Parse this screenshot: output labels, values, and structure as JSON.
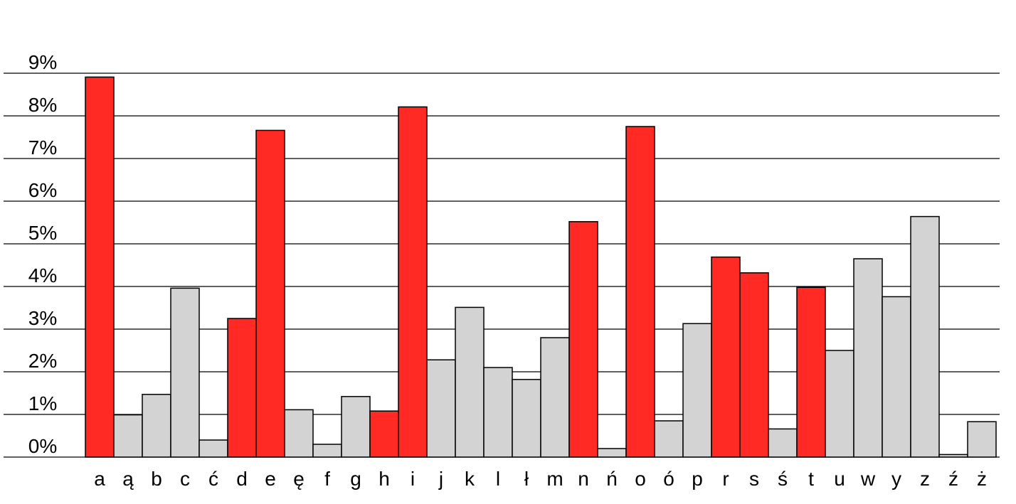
{
  "chart_data": {
    "type": "bar",
    "title": "",
    "xlabel": "",
    "ylabel": "",
    "ylim": [
      0,
      9
    ],
    "yticks": [
      "0%",
      "1%",
      "2%",
      "3%",
      "4%",
      "5%",
      "6%",
      "7%",
      "8%",
      "9%"
    ],
    "grid": true,
    "categories": [
      "a",
      "ą",
      "b",
      "c",
      "ć",
      "d",
      "e",
      "ę",
      "f",
      "g",
      "h",
      "i",
      "j",
      "k",
      "l",
      "ł",
      "m",
      "n",
      "ń",
      "o",
      "ó",
      "p",
      "r",
      "s",
      "ś",
      "t",
      "u",
      "w",
      "y",
      "z",
      "ź",
      "ż"
    ],
    "values": [
      8.91,
      0.99,
      1.47,
      3.96,
      0.4,
      3.25,
      7.66,
      1.11,
      0.3,
      1.42,
      1.08,
      8.21,
      2.28,
      3.51,
      2.1,
      1.82,
      2.8,
      5.52,
      0.2,
      7.75,
      0.85,
      3.13,
      4.69,
      4.32,
      0.66,
      3.98,
      2.5,
      4.65,
      3.76,
      5.64,
      0.06,
      0.83
    ],
    "value_labels": [
      "8.91%",
      "0.99%",
      "1.47%",
      "3.96%",
      "0.40%",
      "3.25%",
      "7.66%",
      "1.11%",
      "0.30%",
      "1.42%",
      "1.08%",
      "8.21%",
      "2.28%",
      "3.51%",
      "2.10%",
      "1.82%",
      "2.80%",
      "5.52%",
      "0.20%",
      "7.75%",
      "0.85%",
      "3.13%",
      "4.69%",
      "4.32%",
      "0.66%",
      "3.98%",
      "2.50%",
      "4.65%",
      "3.76%",
      "5.64%",
      "0.06%",
      "0.83%"
    ],
    "highlighted": [
      "a",
      "d",
      "e",
      "h",
      "i",
      "n",
      "o",
      "r",
      "s",
      "t"
    ],
    "colors": {
      "highlight": "#ff2a23",
      "default": "#d3d3d3",
      "grid": "#000000"
    }
  }
}
